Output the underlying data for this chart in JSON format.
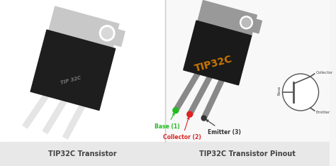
{
  "title_left": "TIP32C Transistor",
  "title_right": "TIP32C Transistor Pinout",
  "chip_label": "TIP32C",
  "base_label": "Base (1)",
  "collector_label": "Collector (2)",
  "emitter_label": "Emitter (3)",
  "collector_symbol": "Collector",
  "base_symbol": "Base",
  "emitter_symbol": "Emitter",
  "bg_color": "#f5f5f5",
  "white_bg": "#ffffff",
  "caption_bg": "#e8e8e8",
  "chip_body_color": "#1a1a1a",
  "chip_tab_color": "#aaaaaa",
  "chip_text_color": "#cc7700",
  "base_color": "#22bb22",
  "collector_color": "#dd2222",
  "emitter_color": "#333333",
  "divider_color": "#cccccc",
  "caption_text_color": "#444444",
  "transistor_line_color": "#555555"
}
